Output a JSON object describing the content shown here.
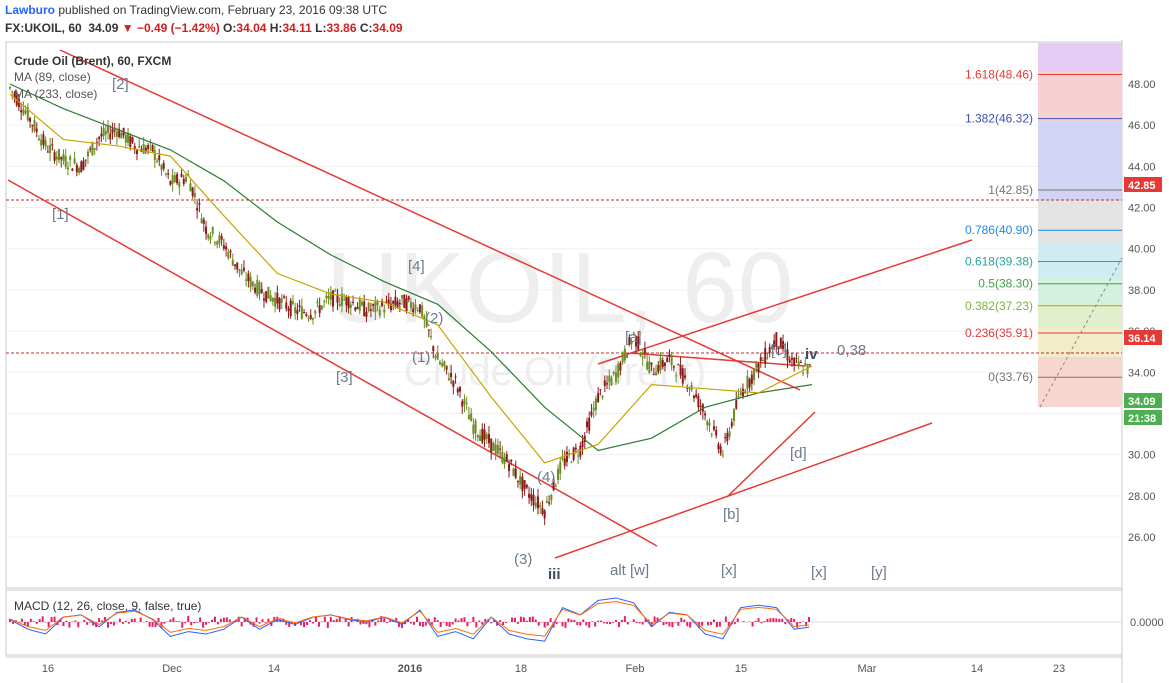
{
  "header": {
    "author": "Lawburo",
    "published_text": "published on TradingView.com, February 23, 2016 09:38 UTC",
    "symbol": "FX:UKOIL, 60",
    "last": "34.09",
    "change": "−0.49 (−1.42%)",
    "o_label": "O:",
    "o": "34.04",
    "h_label": "H:",
    "h": "34.11",
    "l_label": "L:",
    "l": "33.86",
    "c_label": "C:",
    "c": "34.09"
  },
  "legend": {
    "title": "Crude Oil (Brent), 60, FXCM",
    "ma1": "MA (89, close)",
    "ma2": "MA (233, close)",
    "macd": "MACD (12, 26, close, 9, false, true)"
  },
  "watermark": {
    "big": "UKOIL, 60",
    "small": "Crude Oil (Brent)"
  },
  "colors": {
    "up": "#6b8e23",
    "down": "#8b1a1a",
    "ma89": "#d4b106",
    "ma233": "#2e7d32",
    "trend": "#e53935",
    "fib_box_bg": "#f5f5f5",
    "axis_text": "#555555",
    "last_price_bg": "#4caf50",
    "resistance_bg": "#e53935"
  },
  "price_axis_labels": [
    "48.00",
    "46.00",
    "44.00",
    "42.00",
    "40.00",
    "38.00",
    "36.00",
    "34.00",
    "32.00",
    "30.00",
    "28.00",
    "26.00"
  ],
  "price_tags": {
    "r1": "42.85",
    "r2": "36.14",
    "last": "34.09",
    "time": "21:38"
  },
  "macd_axis_label": "0.0000",
  "time_axis_labels": [
    "16",
    "Dec",
    "14",
    "2016",
    "18",
    "Feb",
    "15",
    "Mar",
    "14",
    "23"
  ],
  "wave_labels": {
    "w2": "[2]",
    "w1": "[1]",
    "w3": "[3]",
    "w4": "[4]",
    "s1": "(1)",
    "s2": "(2)",
    "s3": "(3)",
    "s4": "(4)",
    "iii": "iii",
    "a": "[a]",
    "b": "[b]",
    "c": "[c]",
    "d": "[d]",
    "iv": "iv",
    "ratio": "0,38",
    "altw": "alt [w]",
    "x1": "[x]",
    "x2": "[x]",
    "y": "[y]"
  },
  "fib_levels": [
    {
      "label": "1.618(48.46)",
      "price": 48.46,
      "color": "#e53935"
    },
    {
      "label": "1.382(46.32)",
      "price": 46.32,
      "color": "#3f51b5"
    },
    {
      "label": "1(42.85)",
      "price": 42.85,
      "color": "#757575"
    },
    {
      "label": "0.786(40.90)",
      "price": 40.9,
      "color": "#1e88e5"
    },
    {
      "label": "0.618(39.38)",
      "price": 39.38,
      "color": "#26a69a"
    },
    {
      "label": "0.5(38.30)",
      "price": 38.3,
      "color": "#43a047"
    },
    {
      "label": "0.382(37.23)",
      "price": 37.23,
      "color": "#7cb342"
    },
    {
      "label": "0.236(35.91)",
      "price": 35.91,
      "color": "#e53935"
    },
    {
      "label": "0(33.76)",
      "price": 33.76,
      "color": "#757575"
    }
  ],
  "chart_data": {
    "type": "line",
    "title": "Crude Oil (Brent), 60, FXCM",
    "ylim": [
      25.5,
      49.5
    ],
    "x_ticks": [
      "16",
      "Dec",
      "14",
      "2016",
      "18",
      "Feb",
      "15",
      "Mar",
      "14",
      "23"
    ],
    "series": [
      {
        "name": "Crude Oil (Brent)",
        "x": [
          "Nov 11",
          "Nov 13",
          "Nov 16",
          "Nov 18",
          "Nov 20",
          "Nov 23",
          "Nov 25",
          "Nov 27",
          "Nov 30",
          "Dec 2",
          "Dec 4",
          "Dec 7",
          "Dec 9",
          "Dec 11",
          "Dec 14",
          "Dec 16",
          "Dec 18",
          "Dec 21",
          "Dec 23",
          "Dec 25",
          "Dec 28",
          "Dec 30",
          "Jan 1",
          "Jan 4",
          "Jan 6",
          "Jan 8",
          "Jan 11",
          "Jan 13",
          "Jan 15",
          "Jan 18",
          "Jan 20",
          "Jan 22",
          "Jan 25",
          "Jan 27",
          "Jan 29",
          "Feb 1",
          "Feb 3",
          "Feb 5",
          "Feb 8",
          "Feb 10",
          "Feb 12",
          "Feb 15",
          "Feb 17",
          "Feb 19",
          "Feb 22",
          "Feb 23"
        ],
        "values": [
          47.8,
          46.5,
          45.0,
          44.3,
          44.0,
          45.4,
          45.8,
          45.0,
          44.8,
          43.2,
          43.5,
          41.0,
          40.2,
          38.8,
          38.0,
          37.5,
          37.0,
          36.9,
          37.6,
          37.5,
          37.0,
          37.2,
          37.4,
          37.2,
          34.6,
          33.5,
          31.4,
          30.5,
          29.6,
          28.2,
          27.3,
          29.6,
          30.3,
          32.8,
          33.9,
          35.8,
          34.1,
          34.6,
          33.6,
          32.0,
          30.1,
          33.0,
          34.3,
          35.6,
          34.4,
          34.09
        ]
      },
      {
        "name": "MA (89, close)",
        "x": [
          "Nov 11",
          "Nov 18",
          "Nov 25",
          "Dec 2",
          "Dec 9",
          "Dec 16",
          "Dec 23",
          "Dec 30",
          "Jan 6",
          "Jan 13",
          "Jan 20",
          "Jan 27",
          "Feb 3",
          "Feb 10",
          "Feb 17",
          "Feb 23"
        ],
        "values": [
          47.5,
          45.3,
          45.0,
          44.5,
          41.6,
          38.8,
          37.8,
          37.4,
          36.3,
          32.8,
          29.6,
          30.5,
          33.4,
          33.2,
          33.0,
          34.3
        ]
      },
      {
        "name": "MA (233, close)",
        "x": [
          "Nov 11",
          "Nov 18",
          "Nov 25",
          "Dec 2",
          "Dec 9",
          "Dec 16",
          "Dec 23",
          "Dec 30",
          "Jan 6",
          "Jan 13",
          "Jan 20",
          "Jan 27",
          "Feb 3",
          "Feb 10",
          "Feb 17",
          "Feb 23"
        ],
        "values": [
          48.0,
          46.8,
          45.8,
          44.8,
          43.3,
          41.3,
          39.7,
          38.4,
          37.3,
          35.0,
          32.3,
          30.2,
          30.8,
          32.3,
          33.0,
          33.4
        ]
      }
    ],
    "macd": {
      "name": "MACD (12, 26, close, 9, false, true)",
      "ylim": [
        -1.2,
        1.2
      ],
      "values": [
        0.1,
        -0.3,
        -0.5,
        0.2,
        0.3,
        -0.2,
        0.4,
        0.5,
        0.1,
        -0.6,
        -0.4,
        -0.5,
        -0.3,
        0.2,
        -0.3,
        0.1,
        -0.1,
        0.2,
        0.3,
        0.1,
        0.0,
        0.2,
        -0.1,
        0.5,
        -0.6,
        -0.4,
        -0.7,
        0.2,
        -0.5,
        -0.7,
        -0.8,
        0.6,
        0.3,
        0.9,
        1.0,
        0.8,
        -0.2,
        0.4,
        0.3,
        -0.5,
        -0.7,
        0.6,
        0.7,
        0.6,
        -0.3,
        -0.2
      ]
    }
  }
}
